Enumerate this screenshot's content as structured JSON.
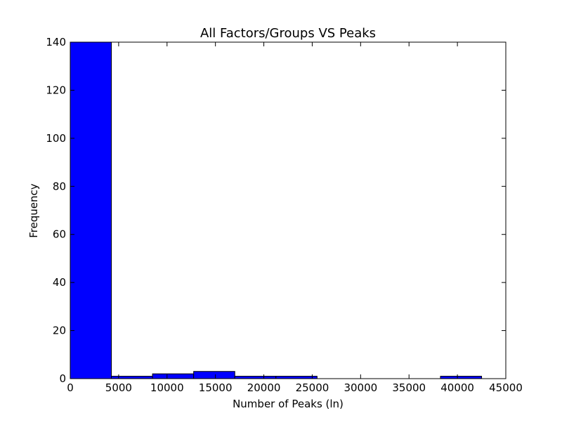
{
  "chart_data": {
    "type": "bar",
    "title": "All Factors/Groups VS Peaks",
    "xlabel": "Number of Peaks (ln)",
    "ylabel": "Frequency",
    "xlim": [
      0,
      45000
    ],
    "ylim": [
      0,
      140
    ],
    "xticks": [
      "0",
      "5000",
      "10000",
      "15000",
      "20000",
      "25000",
      "30000",
      "35000",
      "40000",
      "45000"
    ],
    "yticks": [
      "0",
      "20",
      "40",
      "60",
      "80",
      "100",
      "120",
      "140"
    ],
    "bins": [
      {
        "start": 0,
        "end": 4250,
        "count": 140
      },
      {
        "start": 4250,
        "end": 8500,
        "count": 1
      },
      {
        "start": 8500,
        "end": 12750,
        "count": 2
      },
      {
        "start": 12750,
        "end": 17000,
        "count": 3
      },
      {
        "start": 17000,
        "end": 21250,
        "count": 1
      },
      {
        "start": 21250,
        "end": 25500,
        "count": 1
      },
      {
        "start": 25500,
        "end": 29750,
        "count": 0
      },
      {
        "start": 29750,
        "end": 34000,
        "count": 0
      },
      {
        "start": 34000,
        "end": 38250,
        "count": 0
      },
      {
        "start": 38250,
        "end": 42500,
        "count": 1
      }
    ],
    "bar_color": "#0000ff",
    "edge_color": "#000000",
    "grid": false,
    "legend": false
  }
}
